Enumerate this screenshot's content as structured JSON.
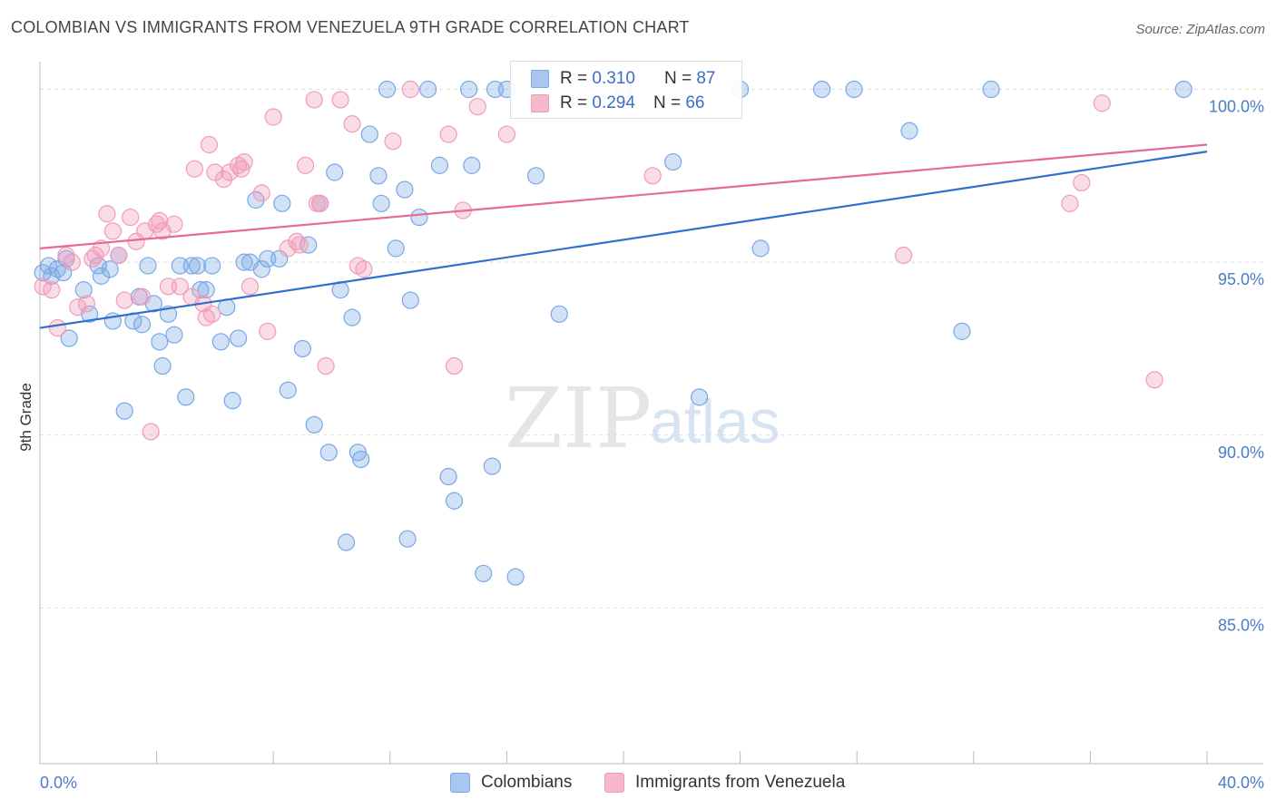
{
  "title": "COLOMBIAN VS IMMIGRANTS FROM VENEZUELA 9TH GRADE CORRELATION CHART",
  "source": "Source: ZipAtlas.com",
  "watermark": {
    "zip": "ZIP",
    "atlas": "atlas"
  },
  "legend": {
    "rows": [
      {
        "r_label": "R =",
        "r_value": "0.310",
        "n_label": "N =",
        "n_value": "87",
        "color": "#aac6f0"
      },
      {
        "r_label": "R =",
        "r_value": "0.294",
        "n_label": "N =",
        "n_value": "66",
        "color": "#f6b8cb"
      }
    ]
  },
  "bottom_legend": [
    {
      "label": "Colombians",
      "color": "#aac6f0"
    },
    {
      "label": "Immigrants from Venezuela",
      "color": "#f6b8cb"
    }
  ],
  "chart_data": {
    "type": "scatter",
    "ylabel": "9th Grade",
    "xlim": [
      0,
      40
    ],
    "ylim": [
      80.5,
      100.8
    ],
    "x_tick_labels": [
      "0.0%",
      "40.0%"
    ],
    "y_ticks": [
      {
        "value": 85,
        "label": "85.0%"
      },
      {
        "value": 90,
        "label": "90.0%"
      },
      {
        "value": 95,
        "label": "95.0%"
      },
      {
        "value": 100,
        "label": "100.0%"
      }
    ],
    "grid": true,
    "series": [
      {
        "name": "Colombians",
        "color": "#7aa8e6",
        "line_color": "#2f6fcf",
        "trend": [
          [
            0,
            93.1
          ],
          [
            40,
            98.2
          ]
        ],
        "points": [
          [
            0.1,
            94.7
          ],
          [
            0.3,
            94.9
          ],
          [
            0.4,
            94.6
          ],
          [
            0.6,
            94.8
          ],
          [
            0.8,
            94.7
          ],
          [
            0.9,
            95.1
          ],
          [
            1.0,
            92.8
          ],
          [
            1.5,
            94.2
          ],
          [
            1.7,
            93.5
          ],
          [
            2.0,
            94.9
          ],
          [
            2.1,
            94.6
          ],
          [
            2.4,
            94.8
          ],
          [
            2.5,
            93.3
          ],
          [
            2.7,
            95.2
          ],
          [
            2.9,
            90.7
          ],
          [
            3.2,
            93.3
          ],
          [
            3.4,
            94.0
          ],
          [
            3.5,
            93.2
          ],
          [
            3.7,
            94.9
          ],
          [
            3.9,
            93.8
          ],
          [
            4.1,
            92.7
          ],
          [
            4.2,
            92.0
          ],
          [
            4.4,
            93.5
          ],
          [
            4.6,
            92.9
          ],
          [
            4.8,
            94.9
          ],
          [
            5.0,
            91.1
          ],
          [
            5.2,
            94.9
          ],
          [
            5.4,
            94.9
          ],
          [
            5.5,
            94.2
          ],
          [
            5.7,
            94.2
          ],
          [
            5.9,
            94.9
          ],
          [
            6.2,
            92.7
          ],
          [
            6.4,
            93.7
          ],
          [
            6.6,
            91.0
          ],
          [
            6.8,
            92.8
          ],
          [
            7.0,
            95.0
          ],
          [
            7.2,
            95.0
          ],
          [
            7.4,
            96.8
          ],
          [
            7.6,
            94.8
          ],
          [
            7.8,
            95.1
          ],
          [
            8.2,
            95.1
          ],
          [
            8.3,
            96.7
          ],
          [
            8.5,
            91.3
          ],
          [
            9.0,
            92.5
          ],
          [
            9.2,
            95.5
          ],
          [
            9.4,
            90.3
          ],
          [
            9.6,
            96.7
          ],
          [
            9.9,
            89.5
          ],
          [
            10.1,
            97.6
          ],
          [
            10.3,
            94.2
          ],
          [
            10.5,
            86.9
          ],
          [
            10.7,
            93.4
          ],
          [
            10.9,
            89.5
          ],
          [
            11.0,
            89.3
          ],
          [
            11.3,
            98.7
          ],
          [
            11.6,
            97.5
          ],
          [
            11.7,
            96.7
          ],
          [
            11.9,
            100.0
          ],
          [
            12.2,
            95.4
          ],
          [
            12.5,
            97.1
          ],
          [
            12.6,
            87.0
          ],
          [
            12.7,
            93.9
          ],
          [
            13.0,
            96.3
          ],
          [
            13.3,
            100.0
          ],
          [
            13.7,
            97.8
          ],
          [
            14.0,
            88.8
          ],
          [
            14.2,
            88.1
          ],
          [
            14.7,
            100.0
          ],
          [
            14.8,
            97.8
          ],
          [
            15.2,
            86.0
          ],
          [
            15.5,
            89.1
          ],
          [
            15.6,
            100.0
          ],
          [
            16.0,
            100.0
          ],
          [
            16.3,
            85.9
          ],
          [
            17.0,
            97.5
          ],
          [
            17.8,
            93.5
          ],
          [
            20.0,
            100.0
          ],
          [
            21.7,
            97.9
          ],
          [
            22.6,
            91.1
          ],
          [
            24.0,
            100.0
          ],
          [
            24.7,
            95.4
          ],
          [
            26.8,
            100.0
          ],
          [
            27.9,
            100.0
          ],
          [
            29.8,
            98.8
          ],
          [
            31.6,
            93.0
          ],
          [
            32.6,
            100.0
          ],
          [
            39.2,
            100.0
          ]
        ]
      },
      {
        "name": "Immigrants from Venezuela",
        "color": "#f29bb8",
        "line_color": "#e8689a",
        "trend": [
          [
            0,
            95.4
          ],
          [
            40,
            98.4
          ]
        ],
        "points": [
          [
            0.1,
            94.3
          ],
          [
            0.4,
            94.2
          ],
          [
            0.6,
            93.1
          ],
          [
            0.9,
            95.2
          ],
          [
            1.1,
            95.0
          ],
          [
            1.3,
            93.7
          ],
          [
            1.6,
            93.8
          ],
          [
            1.9,
            95.2
          ],
          [
            2.1,
            95.4
          ],
          [
            2.3,
            96.4
          ],
          [
            2.5,
            95.9
          ],
          [
            2.7,
            95.2
          ],
          [
            2.9,
            93.9
          ],
          [
            3.1,
            96.3
          ],
          [
            3.3,
            95.6
          ],
          [
            3.5,
            94.0
          ],
          [
            3.6,
            95.9
          ],
          [
            3.8,
            90.1
          ],
          [
            4.0,
            96.1
          ],
          [
            4.2,
            95.9
          ],
          [
            4.4,
            94.3
          ],
          [
            4.6,
            96.1
          ],
          [
            4.8,
            94.3
          ],
          [
            5.2,
            94.0
          ],
          [
            5.3,
            97.7
          ],
          [
            5.6,
            93.8
          ],
          [
            5.7,
            93.4
          ],
          [
            5.8,
            98.4
          ],
          [
            6.0,
            97.6
          ],
          [
            6.3,
            97.4
          ],
          [
            6.5,
            97.6
          ],
          [
            6.8,
            97.8
          ],
          [
            7.0,
            97.9
          ],
          [
            7.2,
            94.3
          ],
          [
            7.6,
            97.0
          ],
          [
            7.8,
            93.0
          ],
          [
            8.0,
            99.2
          ],
          [
            8.5,
            95.4
          ],
          [
            8.8,
            95.6
          ],
          [
            9.1,
            97.8
          ],
          [
            9.4,
            99.7
          ],
          [
            9.5,
            96.7
          ],
          [
            9.8,
            92.0
          ],
          [
            10.3,
            99.7
          ],
          [
            10.7,
            99.0
          ],
          [
            10.9,
            94.9
          ],
          [
            11.1,
            94.8
          ],
          [
            12.1,
            98.5
          ],
          [
            12.7,
            100.0
          ],
          [
            14.0,
            98.7
          ],
          [
            14.2,
            92.0
          ],
          [
            14.5,
            96.5
          ],
          [
            15.0,
            99.5
          ],
          [
            16.0,
            98.7
          ],
          [
            21.0,
            97.5
          ],
          [
            29.6,
            95.2
          ],
          [
            35.3,
            96.7
          ],
          [
            35.7,
            97.3
          ],
          [
            36.4,
            99.6
          ],
          [
            38.2,
            91.6
          ],
          [
            1.8,
            95.1
          ],
          [
            4.1,
            96.2
          ],
          [
            6.9,
            97.7
          ],
          [
            8.9,
            95.5
          ],
          [
            9.6,
            96.7
          ],
          [
            5.9,
            93.5
          ]
        ]
      }
    ]
  }
}
